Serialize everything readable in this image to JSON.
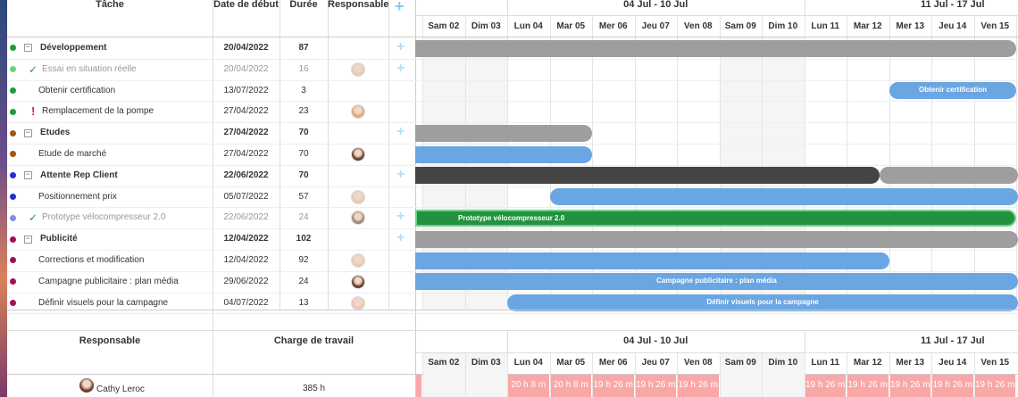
{
  "header": {
    "columns": [
      "Tâche",
      "Date de début",
      "Durée",
      "Responsable"
    ]
  },
  "timeline": {
    "weeks": [
      "04 Jul - 10 Jul",
      "11 Jul - 17 Jul"
    ],
    "days": [
      "Sam 02",
      "Dim 03",
      "Lun 04",
      "Mar 05",
      "Mer 06",
      "Jeu 07",
      "Ven 08",
      "Sam 09",
      "Dim 10",
      "Lun 11",
      "Mar 12",
      "Mer 13",
      "Jeu 14",
      "Ven 15"
    ]
  },
  "tasks": [
    {
      "name": "Développement",
      "start": "20/04/2022",
      "duration": 87,
      "dot": "#1a9e3a",
      "group": true
    },
    {
      "name": "Essai en situation réelle",
      "start": "20/04/2022",
      "duration": 16,
      "dot": "#6fcf7f",
      "status": "done"
    },
    {
      "name": "Obtenir certification",
      "start": "13/07/2022",
      "duration": 3,
      "dot": "#1a9e3a"
    },
    {
      "name": "Remplacement de la pompe",
      "start": "27/04/2022",
      "duration": 23,
      "dot": "#1a9e3a",
      "status": "alert"
    },
    {
      "name": "Etudes",
      "start": "27/04/2022",
      "duration": 70,
      "dot": "#a0580f",
      "group": true
    },
    {
      "name": "Etude de marché",
      "start": "27/04/2022",
      "duration": 70,
      "dot": "#a0580f"
    },
    {
      "name": "Attente Rep Client",
      "start": "22/06/2022",
      "duration": 70,
      "dot": "#2030d0",
      "group": true
    },
    {
      "name": "Positionnement prix",
      "start": "05/07/2022",
      "duration": 57,
      "dot": "#2030d0"
    },
    {
      "name": "Prototype vélocompresseur 2.0",
      "start": "22/06/2022",
      "duration": 24,
      "dot": "#7f8fe8",
      "status": "done"
    },
    {
      "name": "Publicité",
      "start": "12/04/2022",
      "duration": 102,
      "dot": "#a0105a",
      "group": true
    },
    {
      "name": "Corrections et modification",
      "start": "12/04/2022",
      "duration": 92,
      "dot": "#a0105a"
    },
    {
      "name": "Campagne publicitaire : plan média",
      "start": "29/06/2022",
      "duration": 24,
      "dot": "#a0105a"
    },
    {
      "name": "Définir visuels pour la campagne",
      "start": "04/07/2022",
      "duration": 13,
      "dot": "#a0105a"
    }
  ],
  "resources": {
    "columns": [
      "Responsable",
      "Charge de travail"
    ],
    "rows": [
      {
        "name": "Cathy Leroc",
        "load": "385 h",
        "daily": [
          null,
          null,
          "20 h 8 m",
          "20 h 8 m",
          "19 h 26 m",
          "19 h 26 m",
          "19 h 26 m",
          null,
          null,
          "19 h 26 m",
          "19 h 26 m",
          "19 h 26 m",
          "19 h 26 m",
          "19 h 26 m"
        ]
      }
    ]
  }
}
